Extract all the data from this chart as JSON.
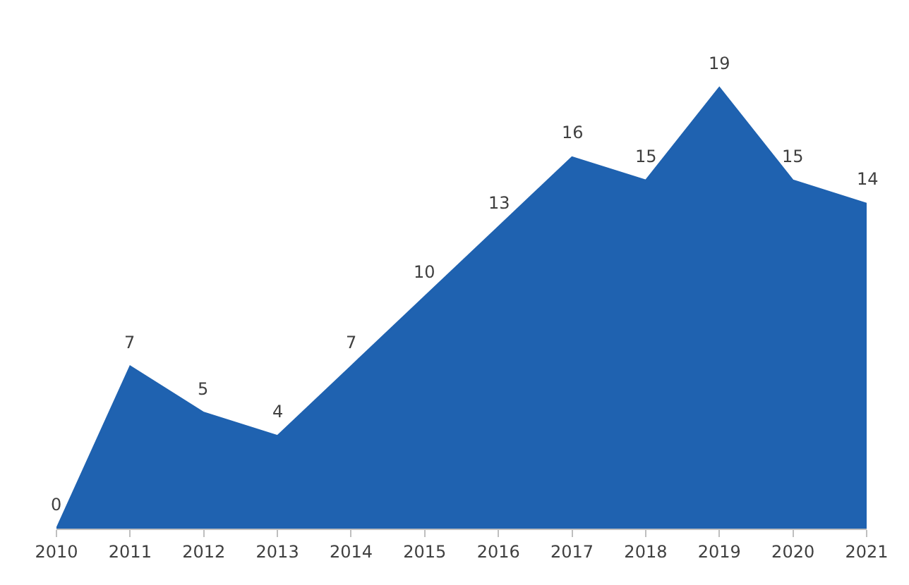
{
  "chart_data": {
    "type": "area",
    "categories": [
      "2010",
      "2011",
      "2012",
      "2013",
      "2014",
      "2015",
      "2016",
      "2017",
      "2018",
      "2019",
      "2020",
      "2021"
    ],
    "series": [
      {
        "color": "#1f62b0",
        "values": [
          0,
          7,
          5,
          4,
          7,
          10,
          13,
          16,
          15,
          19,
          15,
          14
        ]
      }
    ],
    "data_labels": true
  }
}
